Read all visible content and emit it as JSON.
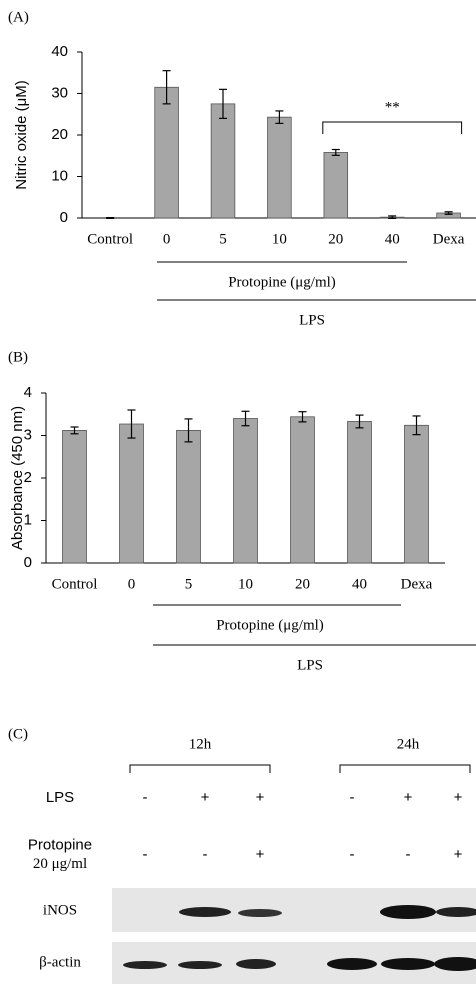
{
  "chart_data": [
    {
      "type": "bar",
      "panel": "(A)",
      "y_label": "Nitric oxide (μM)",
      "categories": [
        "Control",
        "0",
        "5",
        "10",
        "20",
        "40",
        "Dexa"
      ],
      "values": [
        0,
        31.5,
        27.5,
        24.3,
        15.8,
        0.2,
        1.2
      ],
      "errors": [
        0.1,
        4,
        3.5,
        1.5,
        0.7,
        0.3,
        0.3
      ],
      "color": "#a6a6a6",
      "ylim": [
        0,
        40
      ],
      "yticks": [
        0,
        10,
        20,
        30,
        40
      ],
      "group_labels": [
        "Protopine (μg/ml)",
        "LPS"
      ],
      "annotation": "**"
    },
    {
      "type": "bar",
      "panel": "(B)",
      "y_label": "Absorbance  (450 nm)",
      "categories": [
        "Control",
        "0",
        "5",
        "10",
        "20",
        "40",
        "Dexa"
      ],
      "values": [
        3.12,
        3.27,
        3.12,
        3.4,
        3.44,
        3.33,
        3.24
      ],
      "errors": [
        0.08,
        0.33,
        0.27,
        0.17,
        0.12,
        0.15,
        0.22
      ],
      "color": "#a6a6a6",
      "ylim": [
        0,
        4
      ],
      "yticks": [
        0,
        1,
        2,
        3,
        4
      ],
      "group_labels": [
        "Protopine (μg/ml)",
        "LPS"
      ]
    }
  ],
  "blot": {
    "panel": "(C)",
    "times": [
      "12h",
      "24h"
    ],
    "rows": [
      {
        "label": [
          "LPS"
        ],
        "signs": [
          "-",
          "+",
          "+",
          "-",
          "+",
          "+"
        ]
      },
      {
        "label": [
          "Protopine",
          "20 μg/ml"
        ],
        "signs": [
          "-",
          "-",
          "+",
          "-",
          "-",
          "+"
        ]
      }
    ],
    "bands": [
      "iNOS",
      "β-actin"
    ]
  }
}
